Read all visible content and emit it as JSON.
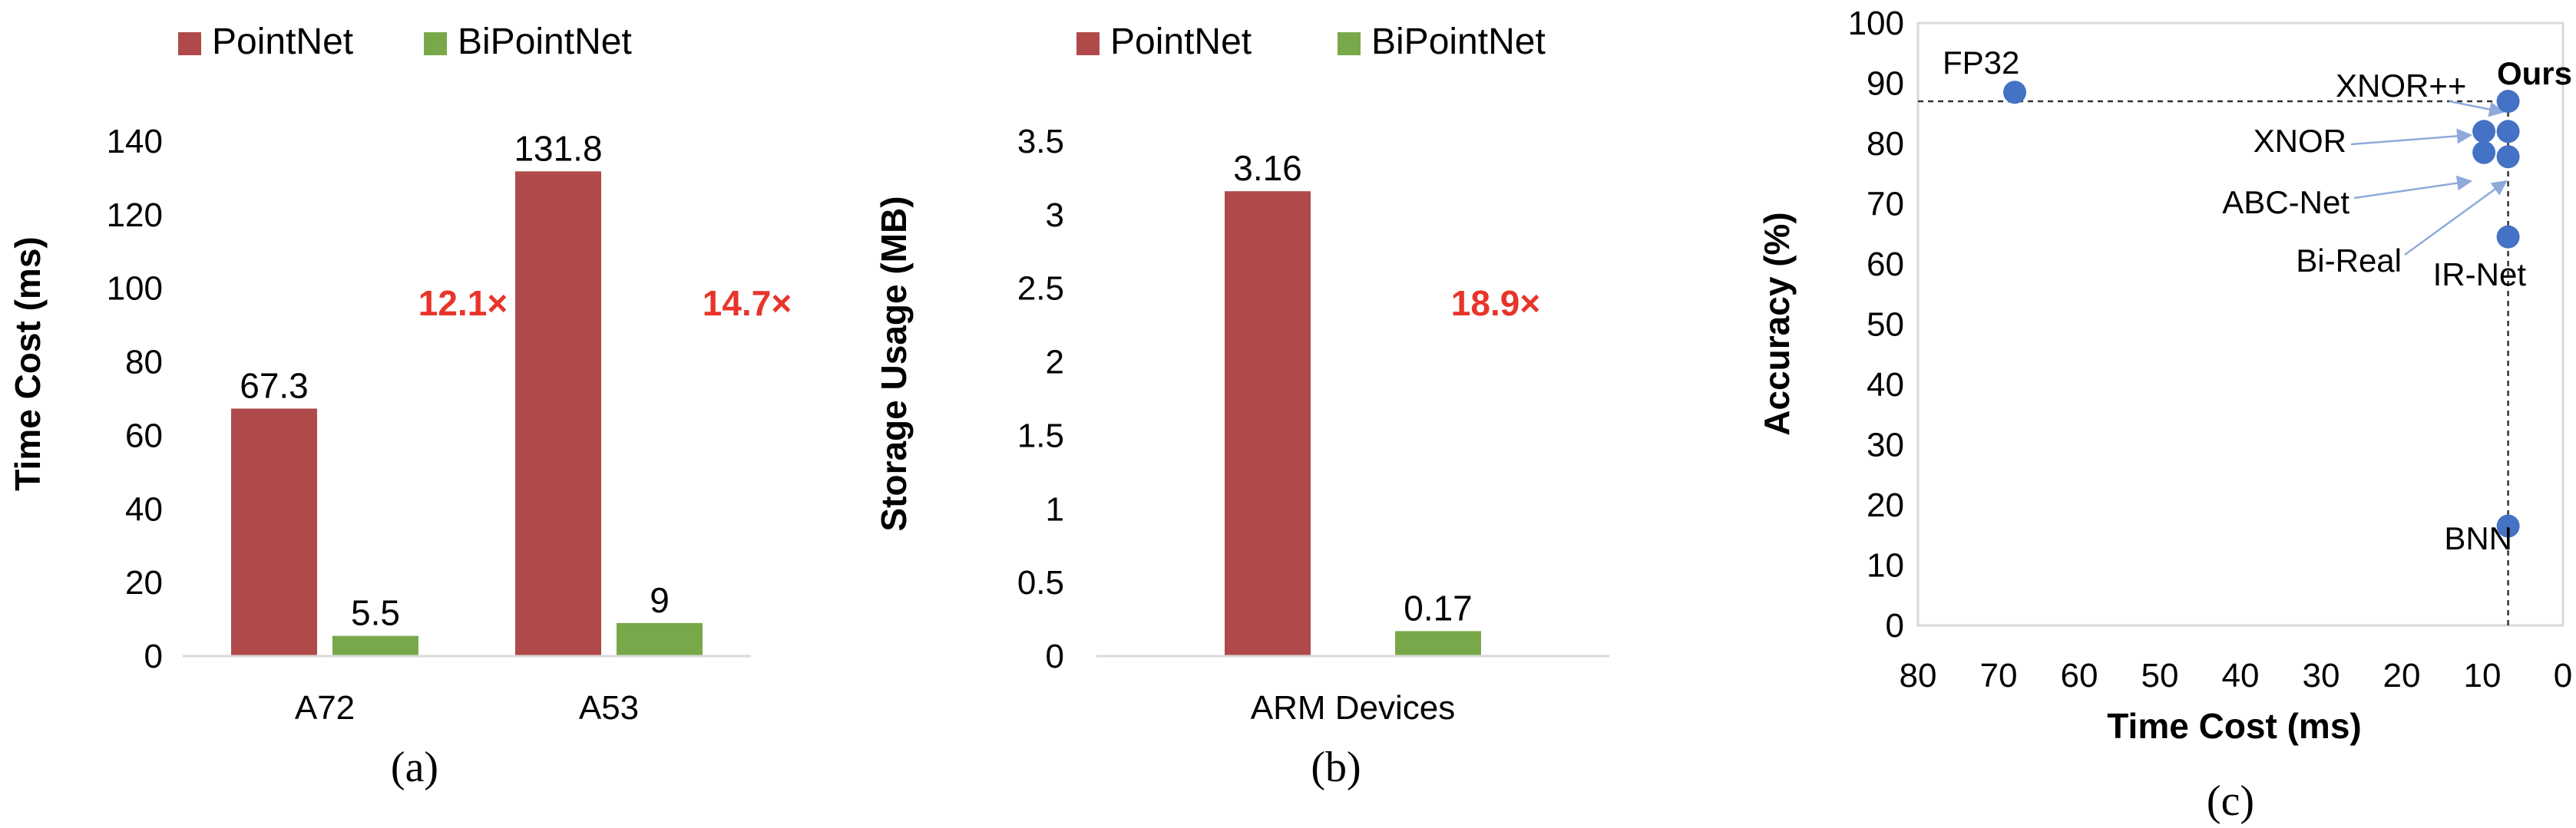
{
  "colors": {
    "pointnet": "#b04a4a",
    "bipointnet": "#79a84a",
    "ratio": "#e8342a",
    "scatter": "#4472c4",
    "arrow": "#8eaadb",
    "axis": "#d9d9d9"
  },
  "chart_data": [
    {
      "type": "bar",
      "caption": "(a)",
      "ylabel": "Time Cost (ms)",
      "xlabel": "",
      "categories": [
        "A72",
        "A53"
      ],
      "ylim": [
        0,
        140
      ],
      "yticks": [
        0,
        20,
        40,
        60,
        80,
        100,
        120,
        140
      ],
      "legend": "top",
      "series": [
        {
          "name": "PointNet",
          "values": [
            67.3,
            131.8
          ],
          "labels": [
            "67.3",
            "131.8"
          ]
        },
        {
          "name": "BiPointNet",
          "values": [
            5.5,
            9
          ],
          "labels": [
            "5.5",
            "9"
          ]
        }
      ],
      "annotations": [
        {
          "text": "12.1×",
          "category": 0,
          "y": 96
        },
        {
          "text": "14.7×",
          "category": 1,
          "y": 96
        }
      ]
    },
    {
      "type": "bar",
      "caption": "(b)",
      "ylabel": "Storage Usage (MB)",
      "xlabel": "",
      "categories": [
        "ARM Devices"
      ],
      "ylim": [
        0,
        3.5
      ],
      "yticks": [
        0,
        0.5,
        1,
        1.5,
        2,
        2.5,
        3,
        3.5
      ],
      "ytick_labels": [
        "0",
        "0.5",
        "1",
        "1.5",
        "2",
        "2.5",
        "3",
        "3.5"
      ],
      "legend": "top",
      "series": [
        {
          "name": "PointNet",
          "values": [
            3.16
          ],
          "labels": [
            "3.16"
          ]
        },
        {
          "name": "BiPointNet",
          "values": [
            0.17
          ],
          "labels": [
            "0.17"
          ]
        }
      ],
      "annotations": [
        {
          "text": "18.9×",
          "category": 0,
          "y": 2.4
        }
      ]
    },
    {
      "type": "scatter",
      "caption": "(c)",
      "xlabel": "Time Cost (ms)",
      "ylabel": "Accuracy (%)",
      "xlim": [
        80,
        0
      ],
      "ylim": [
        0,
        100
      ],
      "xticks": [
        80,
        70,
        60,
        50,
        40,
        30,
        20,
        10,
        0
      ],
      "yticks": [
        0,
        10,
        20,
        30,
        40,
        50,
        60,
        70,
        80,
        90,
        100
      ],
      "points": [
        {
          "x": 68,
          "y": 88.5
        },
        {
          "x": 6.8,
          "y": 87
        },
        {
          "x": 9.8,
          "y": 82
        },
        {
          "x": 6.8,
          "y": 82
        },
        {
          "x": 9.8,
          "y": 78.5
        },
        {
          "x": 6.8,
          "y": 77.8
        },
        {
          "x": 6.8,
          "y": 64.5
        },
        {
          "x": 6.8,
          "y": 16.5
        }
      ],
      "labels": [
        {
          "text": "FP32"
        },
        {
          "text": "Ours"
        },
        {
          "text": "XNOR++"
        },
        {
          "text": "XNOR"
        },
        {
          "text": "ABC-Net"
        },
        {
          "text": "Bi-Real"
        },
        {
          "text": "IR-Net"
        },
        {
          "text": "BNN"
        }
      ],
      "reference_lines": {
        "y": 87,
        "x": 6.8
      }
    }
  ]
}
